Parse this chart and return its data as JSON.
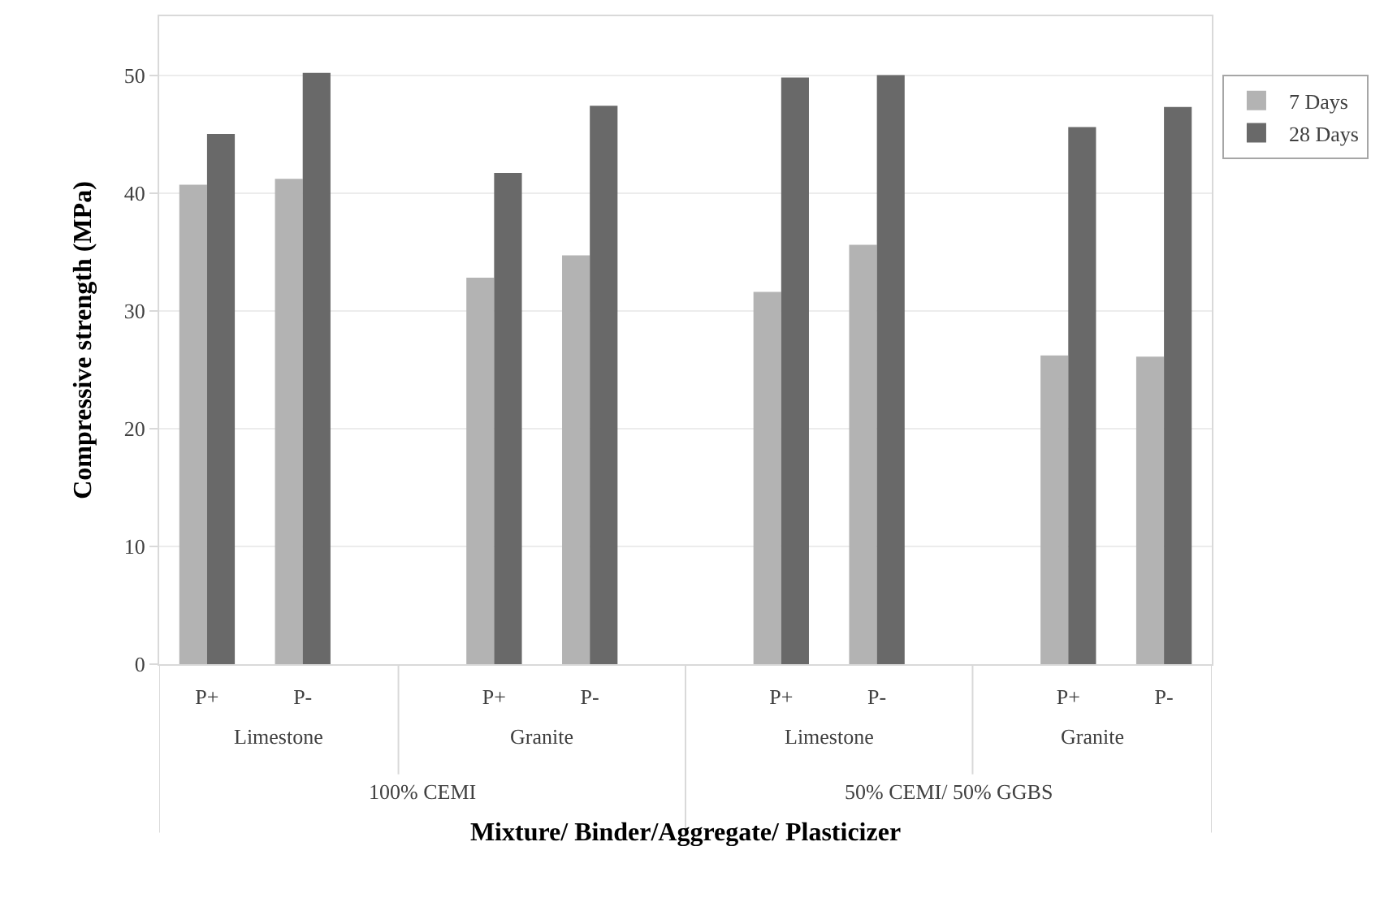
{
  "chart_data": {
    "type": "bar",
    "xlabel": "Mixture/ Binder/Aggregate/ Plasticizer",
    "ylabel": "Compressive strength (MPa)",
    "categories": [
      "P+",
      "P-",
      null,
      "P+",
      "P-",
      null,
      "P+",
      "P-",
      null,
      "P+",
      "P-"
    ],
    "series": [
      {
        "name": "7 Days",
        "color": "#b3b3b3",
        "values": [
          40.7,
          41.2,
          null,
          32.8,
          34.7,
          null,
          31.6,
          35.6,
          null,
          26.2,
          26.1
        ]
      },
      {
        "name": "28 Days",
        "color": "#696969",
        "values": [
          45.0,
          50.2,
          null,
          41.7,
          47.4,
          null,
          49.8,
          50.0,
          null,
          45.6,
          47.3
        ]
      }
    ],
    "annotations": [
      "Limestone",
      "Granite",
      "Limestone",
      "Granite",
      "100% CEMI",
      "50% CEMI/ 50% GGBS"
    ],
    "ylim": [
      0,
      55
    ],
    "yticks": [
      0,
      10,
      20,
      30,
      40,
      50
    ],
    "grid": "y",
    "legend": "top right"
  }
}
